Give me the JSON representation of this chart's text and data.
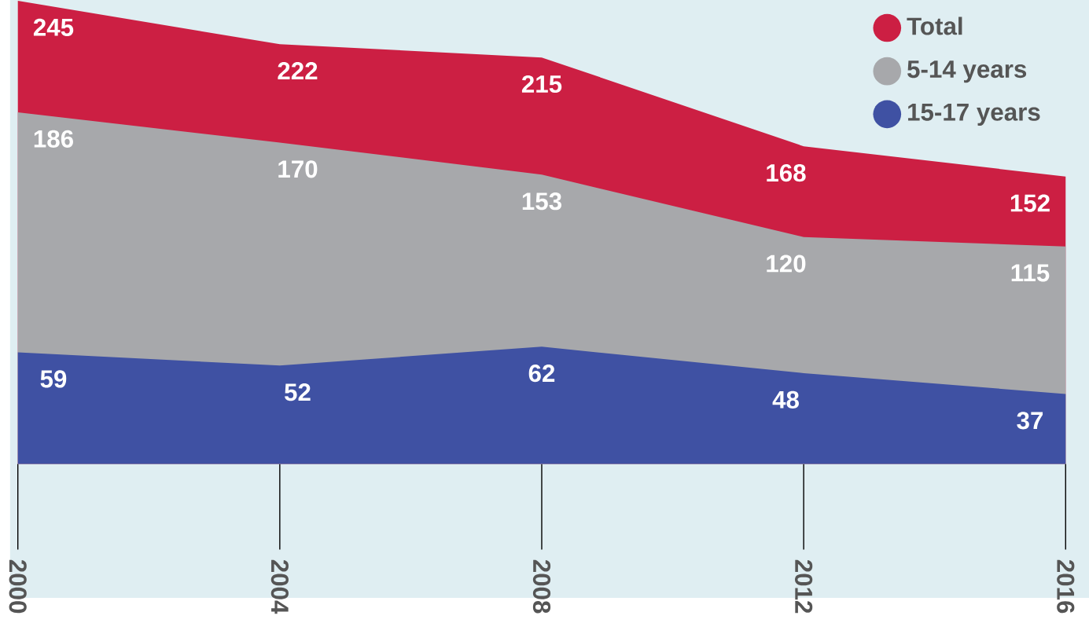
{
  "chart_data": {
    "type": "area",
    "x": [
      2000,
      2004,
      2008,
      2012,
      2016
    ],
    "xlim": [
      2000,
      2016
    ],
    "xticks": [
      2000,
      2004,
      2008,
      2012,
      2016
    ],
    "tick_labels": "x",
    "series": [
      {
        "name": "Total",
        "color": "#cc1f43",
        "values": [
          245,
          222,
          215,
          168,
          152
        ]
      },
      {
        "name": "5-14 years",
        "color": "#a7a8ab",
        "values": [
          186,
          170,
          153,
          120,
          115
        ]
      },
      {
        "name": "15-17 years",
        "color": "#3f51a3",
        "values": [
          59,
          52,
          62,
          48,
          37
        ]
      }
    ],
    "data_labels": true,
    "legend": "top right",
    "grid": false
  }
}
